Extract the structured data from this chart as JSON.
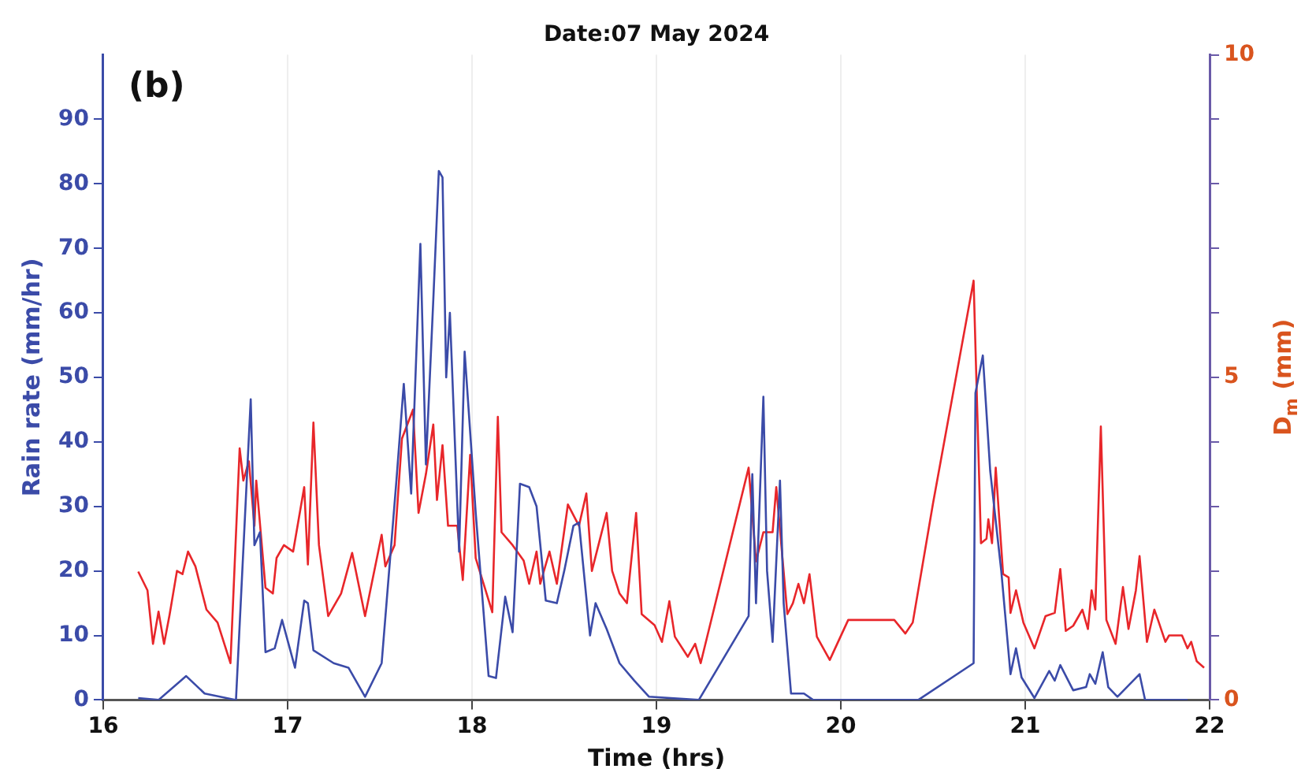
{
  "chart_data": {
    "type": "line",
    "title": "Date:07 May 2024",
    "xlabel": "Time (hrs)",
    "ylabel": "Rain rate (mm/hr)",
    "y2label": "D$_{m}$ (mm)",
    "annotations": [
      "(b)"
    ],
    "xlim": [
      16,
      22
    ],
    "xticks": [
      16,
      17,
      18,
      19,
      20,
      21,
      22
    ],
    "ylim": [
      0,
      100
    ],
    "yticks": [
      0,
      10,
      20,
      30,
      40,
      50,
      60,
      70,
      80,
      90
    ],
    "y2lim": [
      0,
      10
    ],
    "y2ticks": [
      0,
      {
        "value": 1,
        "label": null
      },
      {
        "value": 2,
        "label": null
      },
      {
        "value": 3,
        "label": null
      },
      {
        "value": 4,
        "label": null
      },
      5,
      {
        "value": 6,
        "label": null
      },
      {
        "value": 7,
        "label": null
      },
      {
        "value": 8,
        "label": null
      },
      {
        "value": 9,
        "label": null
      },
      10
    ],
    "grid": "x",
    "marker": "none",
    "line_style": "solid",
    "series": [
      {
        "color": "#3b4ba8",
        "x": [
          16.19,
          16.3,
          16.45,
          16.55,
          16.72,
          16.8,
          16.82,
          16.85,
          16.88,
          16.93,
          16.97,
          17.04,
          17.09,
          17.11,
          17.14,
          17.25,
          17.33,
          17.42,
          17.51,
          17.59,
          17.63,
          17.67,
          17.72,
          17.75,
          17.79,
          17.82,
          17.84,
          17.86,
          17.88,
          17.93,
          17.96,
          18.02,
          18.09,
          18.13,
          18.18,
          18.22,
          18.26,
          18.31,
          18.35,
          18.4,
          18.46,
          18.5,
          18.55,
          18.58,
          18.64,
          18.67,
          18.73,
          18.8,
          18.88,
          18.96,
          19.23,
          19.5,
          19.52,
          19.54,
          19.58,
          19.6,
          19.63,
          19.67,
          19.69,
          19.73,
          19.8,
          19.85,
          20.42,
          20.72,
          20.73,
          20.77,
          20.81,
          20.87,
          20.92,
          20.95,
          20.98,
          21.05,
          21.13,
          21.16,
          21.19,
          21.26,
          21.33,
          21.35,
          21.38,
          21.42,
          21.45,
          21.5,
          21.62,
          21.65,
          21.88
        ],
        "values": [
          0.3,
          0,
          3.7,
          1,
          0,
          46.6,
          24,
          26,
          7.4,
          8,
          12.4,
          5,
          15.4,
          15,
          7.7,
          5.7,
          5,
          0.5,
          5.7,
          34,
          49,
          32,
          70.7,
          36.5,
          62,
          82,
          81,
          50,
          60,
          23,
          54,
          29,
          3.7,
          3.4,
          16,
          10.5,
          33.5,
          33,
          30,
          15.4,
          15,
          20,
          27,
          27.5,
          10,
          15,
          11,
          5.7,
          3,
          0.5,
          0,
          13,
          35,
          15,
          47,
          20,
          9,
          34,
          15,
          1,
          1,
          0,
          0,
          5.7,
          47.6,
          53.4,
          35.5,
          20,
          4,
          8,
          3.5,
          0.3,
          4.5,
          3,
          5.4,
          1.5,
          2,
          4,
          2.5,
          7.4,
          2,
          0.5,
          4,
          0,
          0
        ]
      },
      {
        "color": "#e8262a",
        "axis": "y2",
        "x": [
          16.19,
          16.24,
          16.27,
          16.3,
          16.33,
          16.36,
          16.4,
          16.43,
          16.46,
          16.5,
          16.56,
          16.62,
          16.69,
          16.74,
          16.76,
          16.79,
          16.82,
          16.83,
          16.88,
          16.92,
          16.94,
          16.98,
          17.03,
          17.09,
          17.11,
          17.14,
          17.17,
          17.22,
          17.29,
          17.35,
          17.42,
          17.51,
          17.53,
          17.58,
          17.62,
          17.68,
          17.71,
          17.75,
          17.79,
          17.81,
          17.84,
          17.87,
          17.92,
          17.95,
          17.99,
          18.02,
          18.11,
          18.14,
          18.16,
          18.22,
          18.28,
          18.31,
          18.35,
          18.37,
          18.42,
          18.46,
          18.52,
          18.58,
          18.62,
          18.65,
          18.73,
          18.76,
          18.8,
          18.84,
          18.89,
          18.92,
          18.99,
          19.03,
          19.07,
          19.1,
          19.17,
          19.21,
          19.24,
          19.5,
          19.54,
          19.58,
          19.63,
          19.65,
          19.71,
          19.74,
          19.77,
          19.8,
          19.83,
          19.87,
          19.94,
          20.04,
          20.29,
          20.35,
          20.39,
          20.5,
          20.72,
          20.76,
          20.79,
          20.8,
          20.82,
          20.84,
          20.88,
          20.91,
          20.92,
          20.95,
          20.99,
          21.05,
          21.11,
          21.16,
          21.19,
          21.22,
          21.26,
          21.31,
          21.34,
          21.36,
          21.38,
          21.41,
          21.44,
          21.49,
          21.53,
          21.56,
          21.6,
          21.62,
          21.66,
          21.7,
          21.72,
          21.76,
          21.78,
          21.85,
          21.88,
          21.9,
          21.93,
          21.97
        ],
        "values": [
          1.99,
          1.7,
          0.87,
          1.37,
          0.87,
          1.32,
          2,
          1.95,
          2.3,
          2.07,
          1.4,
          1.2,
          0.57,
          3.9,
          3.4,
          3.7,
          2.7,
          3.4,
          1.74,
          1.65,
          2.2,
          2.4,
          2.3,
          3.3,
          2.1,
          4.3,
          2.4,
          1.3,
          1.65,
          2.28,
          1.3,
          2.56,
          2.07,
          2.4,
          4.05,
          4.5,
          2.9,
          3.5,
          4.27,
          3.1,
          3.95,
          2.7,
          2.7,
          1.86,
          3.8,
          2.2,
          1.36,
          4.39,
          2.6,
          2.4,
          2.16,
          1.8,
          2.3,
          1.8,
          2.3,
          1.8,
          3.03,
          2.7,
          3.2,
          2,
          2.9,
          2,
          1.65,
          1.5,
          2.9,
          1.33,
          1.16,
          0.9,
          1.53,
          0.98,
          0.67,
          0.87,
          0.57,
          3.6,
          2.15,
          2.6,
          2.6,
          3.3,
          1.33,
          1.5,
          1.8,
          1.5,
          1.95,
          0.98,
          0.62,
          1.24,
          1.24,
          1.03,
          1.2,
          3.05,
          6.5,
          2.43,
          2.5,
          2.8,
          2.43,
          3.6,
          1.95,
          1.9,
          1.35,
          1.7,
          1.2,
          0.8,
          1.3,
          1.35,
          2.03,
          1.07,
          1.15,
          1.4,
          1.1,
          1.7,
          1.4,
          4.24,
          1.24,
          0.87,
          1.75,
          1.1,
          1.7,
          2.23,
          0.9,
          1.4,
          1.24,
          0.9,
          1,
          1,
          0.8,
          0.9,
          0.6,
          0.5
        ]
      }
    ]
  }
}
